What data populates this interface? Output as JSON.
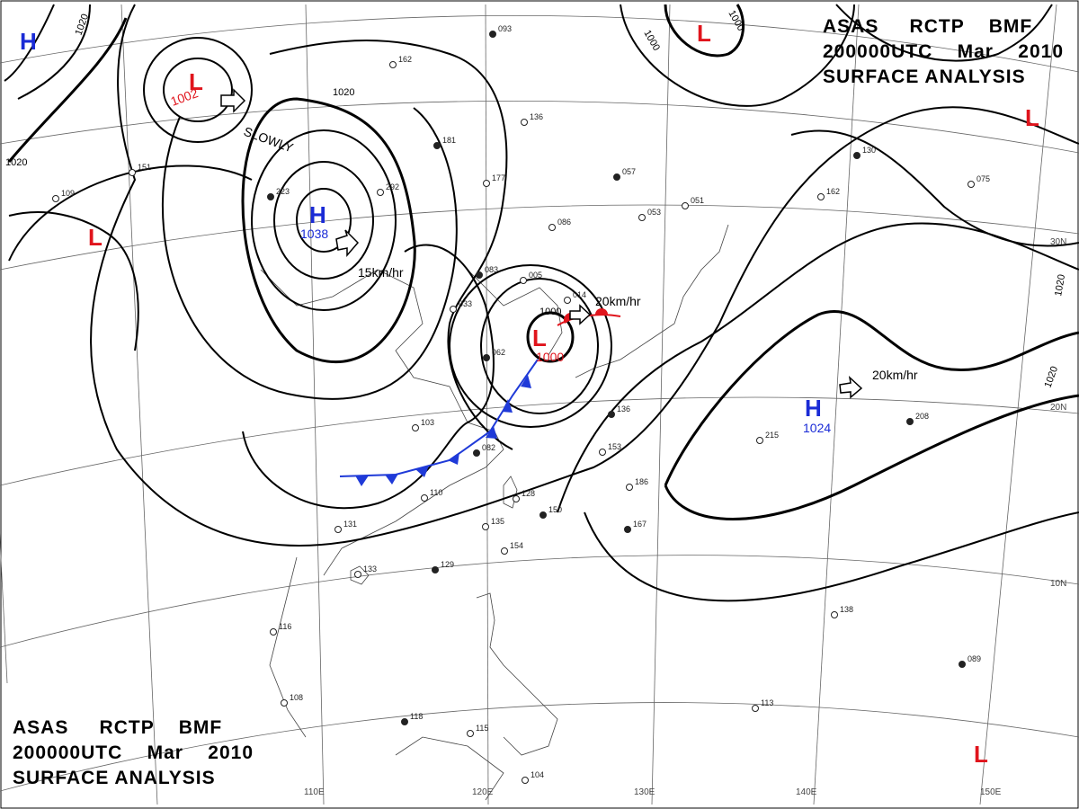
{
  "header": {
    "agency": "ASAS",
    "station": "RCTP",
    "bmf": "BMF",
    "time": "200000UTC",
    "month": "Mar",
    "year": "2010",
    "product": "SURFACE ANALYSIS"
  },
  "colors": {
    "high": "#1a2bd6",
    "low": "#e0141c",
    "cold_front": "#1f3ad8",
    "warm_front": "#e0141c",
    "isobar": "#000000",
    "grid": "#555555"
  },
  "centers": [
    {
      "type": "H",
      "pressure": "1038"
    },
    {
      "type": "L",
      "pressure": "1002"
    },
    {
      "type": "H",
      "pressure": "1024"
    },
    {
      "type": "L",
      "pressure": "1000"
    },
    {
      "type": "H",
      "pressure": ""
    },
    {
      "type": "L",
      "pressure": ""
    },
    {
      "type": "L",
      "pressure": ""
    },
    {
      "type": "L",
      "pressure": ""
    },
    {
      "type": "L",
      "pressure": ""
    }
  ],
  "motion_labels": [
    "SLOWLY",
    "15km/hr",
    "20km/hr",
    "20km/hr"
  ],
  "isobar_labels": [
    "1020",
    "1020",
    "1020",
    "1020",
    "1020",
    "1000",
    "1000",
    "1000"
  ],
  "longitudes": [
    "110E",
    "120E",
    "130E",
    "140E",
    "150E"
  ],
  "latitudes": [
    "30N",
    "20N",
    "10N"
  ],
  "station_numbers": [
    "093",
    "162",
    "136",
    "181",
    "177",
    "086",
    "057",
    "053",
    "051",
    "083",
    "005",
    "033",
    "062",
    "014",
    "103",
    "082",
    "110",
    "128",
    "150",
    "131",
    "133",
    "129",
    "135",
    "154",
    "167",
    "186",
    "153",
    "136",
    "116",
    "108",
    "118",
    "115",
    "104",
    "089",
    "113",
    "215",
    "208",
    "138",
    "075",
    "130",
    "162",
    "292",
    "223",
    "151",
    "109"
  ]
}
